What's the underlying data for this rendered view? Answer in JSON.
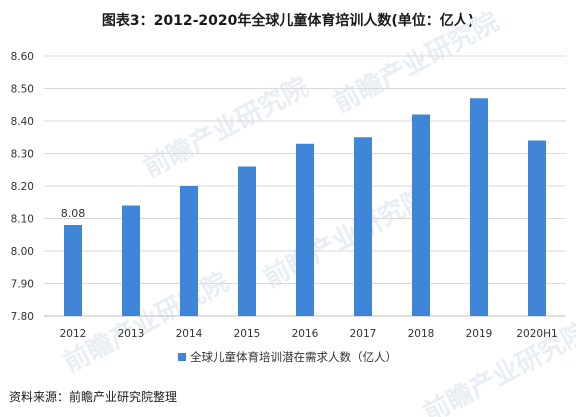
{
  "title": "图表3：2012-2020年全球儿童体育培训人数(单位：亿人)",
  "source": "资料来源：前瞻产业研究院整理",
  "watermark": "前瞻产业研究院",
  "colors": {
    "bar": "#3f86d8",
    "grid": "#d9d9d9",
    "axis": "#bfbfbf",
    "text": "#333333"
  },
  "chart_data": {
    "type": "bar",
    "categories": [
      "2012",
      "2013",
      "2014",
      "2015",
      "2016",
      "2017",
      "2018",
      "2019",
      "2020H1"
    ],
    "series": [
      {
        "name": "全球儿童体育培训潜在需求人数（亿人）",
        "values": [
          8.08,
          8.14,
          8.2,
          8.26,
          8.33,
          8.35,
          8.42,
          8.47,
          8.34
        ]
      }
    ],
    "data_labels": [
      {
        "category": "2012",
        "text": "8.08"
      }
    ],
    "yticks": [
      "8.60",
      "8.50",
      "8.40",
      "8.30",
      "8.20",
      "8.10",
      "8.00",
      "7.90",
      "7.80"
    ],
    "ylim": [
      7.8,
      8.6
    ],
    "grid": true,
    "legend": "bottom"
  }
}
